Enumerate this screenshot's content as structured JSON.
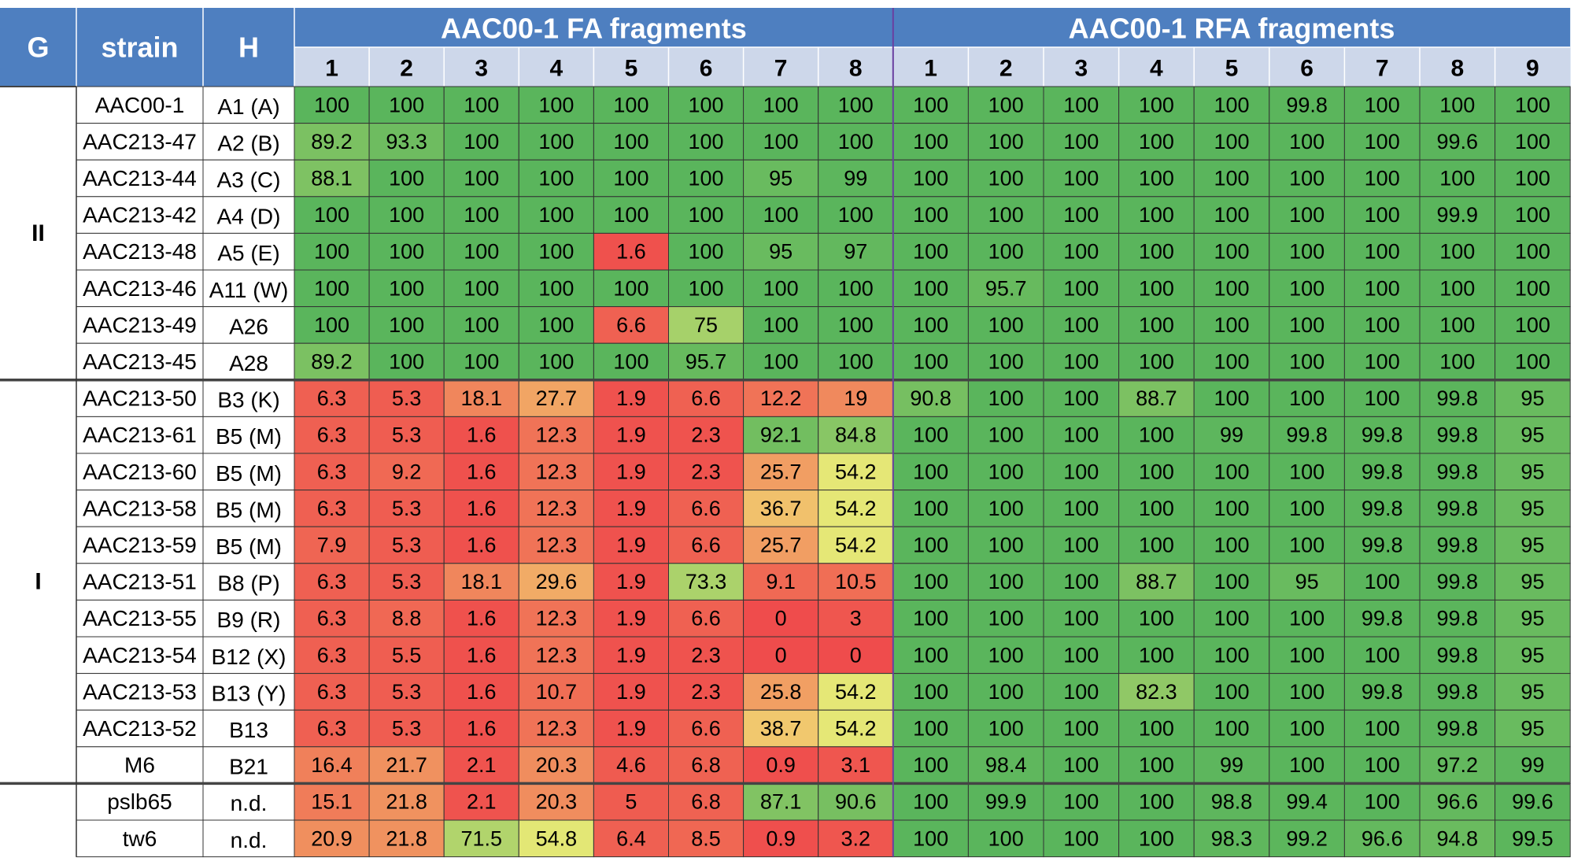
{
  "chart_data": {
    "type": "heatmap",
    "header": {
      "g_label": "G",
      "strain_label": "strain",
      "h_label": "H",
      "fa_title": "AAC00-1 FA fragments",
      "rfa_title": "AAC00-1 RFA fragments",
      "fa_columns": [
        "1",
        "2",
        "3",
        "4",
        "5",
        "6",
        "7",
        "8"
      ],
      "rfa_columns": [
        "1",
        "2",
        "3",
        "4",
        "5",
        "6",
        "7",
        "8",
        "9"
      ]
    },
    "groups": [
      {
        "label": "II",
        "start_row": 0,
        "row_count": 8
      },
      {
        "label": "I",
        "start_row": 8,
        "row_count": 11
      },
      {
        "label": "",
        "start_row": 19,
        "row_count": 2
      }
    ],
    "color_scale": {
      "min": 0,
      "max": 100,
      "low": "#ef4c4c",
      "mid": "#f2ec78",
      "high": "#5ab55c"
    },
    "colors": {
      "header_bg": "#4e7fc0",
      "subheader_bg": "#cdd7ea",
      "divider": "#6a3fa0"
    },
    "rows": [
      {
        "strain": "AAC00-1",
        "h": "A1 (A)",
        "fa": [
          "100",
          "100",
          "100",
          "100",
          "100",
          "100",
          "100",
          "100"
        ],
        "rfa": [
          "100",
          "100",
          "100",
          "100",
          "100",
          "99.8",
          "100",
          "100",
          "100"
        ]
      },
      {
        "strain": "AAC213-47",
        "h": "A2 (B)",
        "fa": [
          "89.2",
          "93.3",
          "100",
          "100",
          "100",
          "100",
          "100",
          "100"
        ],
        "rfa": [
          "100",
          "100",
          "100",
          "100",
          "100",
          "100",
          "100",
          "99.6",
          "100"
        ]
      },
      {
        "strain": "AAC213-44",
        "h": "A3 (C)",
        "fa": [
          "88.1",
          "100",
          "100",
          "100",
          "100",
          "100",
          "95",
          "99"
        ],
        "rfa": [
          "100",
          "100",
          "100",
          "100",
          "100",
          "100",
          "100",
          "100",
          "100"
        ]
      },
      {
        "strain": "AAC213-42",
        "h": "A4 (D)",
        "fa": [
          "100",
          "100",
          "100",
          "100",
          "100",
          "100",
          "100",
          "100"
        ],
        "rfa": [
          "100",
          "100",
          "100",
          "100",
          "100",
          "100",
          "100",
          "99.9",
          "100"
        ]
      },
      {
        "strain": "AAC213-48",
        "h": "A5 (E)",
        "fa": [
          "100",
          "100",
          "100",
          "100",
          "1.6",
          "100",
          "95",
          "97"
        ],
        "rfa": [
          "100",
          "100",
          "100",
          "100",
          "100",
          "100",
          "100",
          "100",
          "100"
        ]
      },
      {
        "strain": "AAC213-46",
        "h": "A11 (W)",
        "fa": [
          "100",
          "100",
          "100",
          "100",
          "100",
          "100",
          "100",
          "100"
        ],
        "rfa": [
          "100",
          "95.7",
          "100",
          "100",
          "100",
          "100",
          "100",
          "100",
          "100"
        ]
      },
      {
        "strain": "AAC213-49",
        "h": "A26",
        "fa": [
          "100",
          "100",
          "100",
          "100",
          "6.6",
          "75",
          "100",
          "100"
        ],
        "rfa": [
          "100",
          "100",
          "100",
          "100",
          "100",
          "100",
          "100",
          "100",
          "100"
        ]
      },
      {
        "strain": "AAC213-45",
        "h": "A28",
        "fa": [
          "89.2",
          "100",
          "100",
          "100",
          "100",
          "95.7",
          "100",
          "100"
        ],
        "rfa": [
          "100",
          "100",
          "100",
          "100",
          "100",
          "100",
          "100",
          "100",
          "100"
        ]
      },
      {
        "strain": "AAC213-50",
        "h": "B3 (K)",
        "fa": [
          "6.3",
          "5.3",
          "18.1",
          "27.7",
          "1.9",
          "6.6",
          "12.2",
          "19"
        ],
        "rfa": [
          "90.8",
          "100",
          "100",
          "88.7",
          "100",
          "100",
          "100",
          "99.8",
          "95"
        ]
      },
      {
        "strain": "AAC213-61",
        "h": "B5 (M)",
        "fa": [
          "6.3",
          "5.3",
          "1.6",
          "12.3",
          "1.9",
          "2.3",
          "92.1",
          "84.8"
        ],
        "rfa": [
          "100",
          "100",
          "100",
          "100",
          "99",
          "99.8",
          "99.8",
          "99.8",
          "95"
        ]
      },
      {
        "strain": "AAC213-60",
        "h": "B5 (M)",
        "fa": [
          "6.3",
          "9.2",
          "1.6",
          "12.3",
          "1.9",
          "2.3",
          "25.7",
          "54.2"
        ],
        "rfa": [
          "100",
          "100",
          "100",
          "100",
          "100",
          "100",
          "99.8",
          "99.8",
          "95"
        ]
      },
      {
        "strain": "AAC213-58",
        "h": "B5 (M)",
        "fa": [
          "6.3",
          "5.3",
          "1.6",
          "12.3",
          "1.9",
          "6.6",
          "36.7",
          "54.2"
        ],
        "rfa": [
          "100",
          "100",
          "100",
          "100",
          "100",
          "100",
          "99.8",
          "99.8",
          "95"
        ]
      },
      {
        "strain": "AAC213-59",
        "h": "B5 (M)",
        "fa": [
          "7.9",
          "5.3",
          "1.6",
          "12.3",
          "1.9",
          "6.6",
          "25.7",
          "54.2"
        ],
        "rfa": [
          "100",
          "100",
          "100",
          "100",
          "100",
          "100",
          "99.8",
          "99.8",
          "95"
        ]
      },
      {
        "strain": "AAC213-51",
        "h": "B8 (P)",
        "fa": [
          "6.3",
          "5.3",
          "18.1",
          "29.6",
          "1.9",
          "73.3",
          "9.1",
          "10.5"
        ],
        "rfa": [
          "100",
          "100",
          "100",
          "88.7",
          "100",
          "95",
          "100",
          "99.8",
          "95"
        ]
      },
      {
        "strain": "AAC213-55",
        "h": "B9 (R)",
        "fa": [
          "6.3",
          "8.8",
          "1.6",
          "12.3",
          "1.9",
          "6.6",
          "0",
          "3"
        ],
        "rfa": [
          "100",
          "100",
          "100",
          "100",
          "100",
          "100",
          "99.8",
          "99.8",
          "95"
        ]
      },
      {
        "strain": "AAC213-54",
        "h": "B12 (X)",
        "fa": [
          "6.3",
          "5.5",
          "1.6",
          "12.3",
          "1.9",
          "2.3",
          "0",
          "0"
        ],
        "rfa": [
          "100",
          "100",
          "100",
          "100",
          "100",
          "100",
          "100",
          "99.8",
          "95"
        ]
      },
      {
        "strain": "AAC213-53",
        "h": "B13 (Y)",
        "fa": [
          "6.3",
          "5.3",
          "1.6",
          "10.7",
          "1.9",
          "2.3",
          "25.8",
          "54.2"
        ],
        "rfa": [
          "100",
          "100",
          "100",
          "82.3",
          "100",
          "100",
          "99.8",
          "99.8",
          "95"
        ]
      },
      {
        "strain": "AAC213-52",
        "h": "B13",
        "fa": [
          "6.3",
          "5.3",
          "1.6",
          "12.3",
          "1.9",
          "6.6",
          "38.7",
          "54.2"
        ],
        "rfa": [
          "100",
          "100",
          "100",
          "100",
          "100",
          "100",
          "100",
          "99.8",
          "95"
        ]
      },
      {
        "strain": "M6",
        "h": "B21",
        "fa": [
          "16.4",
          "21.7",
          "2.1",
          "20.3",
          "4.6",
          "6.8",
          "0.9",
          "3.1"
        ],
        "rfa": [
          "100",
          "98.4",
          "100",
          "100",
          "99",
          "100",
          "100",
          "97.2",
          "99"
        ]
      },
      {
        "strain": "pslb65",
        "h": "n.d.",
        "fa": [
          "15.1",
          "21.8",
          "2.1",
          "20.3",
          "5",
          "6.8",
          "87.1",
          "90.6"
        ],
        "rfa": [
          "100",
          "99.9",
          "100",
          "100",
          "98.8",
          "99.4",
          "100",
          "96.6",
          "99.6"
        ]
      },
      {
        "strain": "tw6",
        "h": "n.d.",
        "fa": [
          "20.9",
          "21.8",
          "71.5",
          "54.8",
          "6.4",
          "8.5",
          "0.9",
          "3.2"
        ],
        "rfa": [
          "100",
          "100",
          "100",
          "100",
          "98.3",
          "99.2",
          "96.6",
          "94.8",
          "99.5"
        ]
      }
    ]
  }
}
